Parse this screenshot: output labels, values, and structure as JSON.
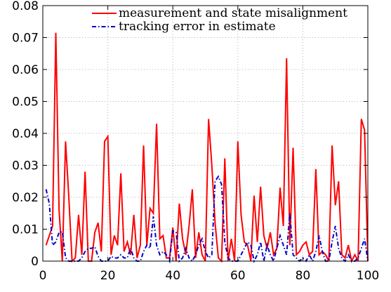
{
  "chart_data": {
    "type": "line",
    "x": [
      1,
      2,
      3,
      4,
      5,
      6,
      7,
      8,
      9,
      10,
      11,
      12,
      13,
      14,
      15,
      16,
      17,
      18,
      19,
      20,
      21,
      22,
      23,
      24,
      25,
      26,
      27,
      28,
      29,
      30,
      31,
      32,
      33,
      34,
      35,
      36,
      37,
      38,
      39,
      40,
      41,
      42,
      43,
      44,
      45,
      46,
      47,
      48,
      49,
      50,
      51,
      52,
      53,
      54,
      55,
      56,
      57,
      58,
      59,
      60,
      61,
      62,
      63,
      64,
      65,
      66,
      67,
      68,
      69,
      70,
      71,
      72,
      73,
      74,
      75,
      76,
      77,
      78,
      79,
      80,
      81,
      82,
      83,
      84,
      85,
      86,
      87,
      88,
      89,
      90,
      91,
      92,
      93,
      94,
      95,
      96,
      97,
      98,
      99,
      100
    ],
    "xlim": [
      0,
      100
    ],
    "ylim": [
      0,
      0.08
    ],
    "xticks": [
      "0",
      "20",
      "40",
      "60",
      "80",
      "100"
    ],
    "yticks": [
      "0",
      "0.01",
      "0.02",
      "0.03",
      "0.04",
      "0.05",
      "0.06",
      "0.07",
      "0.08"
    ],
    "grid": true,
    "legend_position": "top-right",
    "series": [
      {
        "name": "measurement and state misalignment",
        "color": "#ff0000",
        "style": "solid",
        "values": [
          0.005,
          0.008,
          0.011,
          0.0715,
          0.016,
          0.0,
          0.0375,
          0.02,
          0.0,
          0.001,
          0.0145,
          0.002,
          0.028,
          0.0,
          0.0,
          0.009,
          0.012,
          0.003,
          0.0375,
          0.039,
          0.002,
          0.008,
          0.005,
          0.0275,
          0.003,
          0.006,
          0.002,
          0.0145,
          0.001,
          0.005,
          0.0362,
          0.005,
          0.0165,
          0.015,
          0.043,
          0.007,
          0.008,
          0.001,
          0.001,
          0.0105,
          0.0,
          0.018,
          0.007,
          0.002,
          0.011,
          0.0225,
          0.001,
          0.009,
          0.002,
          0.0,
          0.0445,
          0.03,
          0.012,
          0.001,
          0.0,
          0.0322,
          0.0,
          0.007,
          0.0,
          0.0375,
          0.0145,
          0.006,
          0.005,
          0.0,
          0.0205,
          0.006,
          0.0233,
          0.008,
          0.004,
          0.009,
          0.002,
          0.004,
          0.023,
          0.011,
          0.0635,
          0.005,
          0.0355,
          0.002,
          0.003,
          0.005,
          0.006,
          0.002,
          0.003,
          0.0288,
          0.002,
          0.003,
          0.002,
          0.0,
          0.0362,
          0.0175,
          0.025,
          0.002,
          0.001,
          0.005,
          0.0,
          0.002,
          0.0,
          0.0445,
          0.041,
          0.0
        ]
      },
      {
        "name": "tracking error in estimate",
        "color": "#0000cc",
        "style": "dashdot",
        "values": [
          0.0225,
          0.018,
          0.005,
          0.006,
          0.009,
          0.0092,
          0.001,
          0.0,
          0.0,
          0.0,
          0.0,
          0.001,
          0.003,
          0.004,
          0.004,
          0.0045,
          0.0015,
          0.0,
          0.0,
          0.0,
          0.0015,
          0.001,
          0.001,
          0.002,
          0.001,
          0.001,
          0.004,
          0.001,
          0.0,
          0.0,
          0.003,
          0.005,
          0.004,
          0.014,
          0.005,
          0.002,
          0.003,
          0.002,
          0.0,
          0.0095,
          0.009,
          0.0,
          0.001,
          0.004,
          0.001,
          0.0,
          0.002,
          0.005,
          0.007,
          0.003,
          0.001,
          0.002,
          0.025,
          0.0265,
          0.024,
          0.006,
          0.001,
          0.0,
          0.0,
          0.0,
          0.002,
          0.004,
          0.006,
          0.005,
          0.0,
          0.002,
          0.006,
          0.0,
          0.005,
          0.002,
          0.0,
          0.004,
          0.008,
          0.005,
          0.002,
          0.015,
          0.002,
          0.001,
          0.0,
          0.001,
          0.0,
          0.002,
          0.0,
          0.003,
          0.008,
          0.003,
          0.0,
          0.0,
          0.006,
          0.011,
          0.004,
          0.001,
          0.0,
          0.002,
          0.0,
          0.0,
          0.001,
          0.004,
          0.007,
          0.0
        ]
      }
    ]
  }
}
